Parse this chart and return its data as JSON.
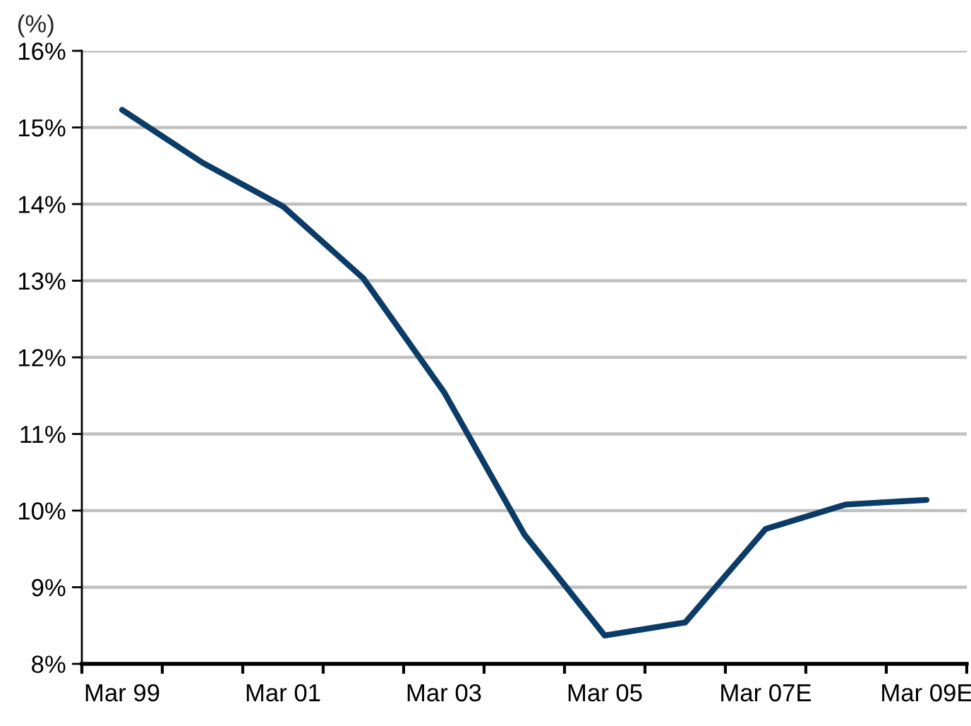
{
  "chart_data": {
    "type": "line",
    "ylabel": "(%)",
    "categories": [
      "Mar 99",
      null,
      "Mar 01",
      null,
      "Mar 03",
      null,
      "Mar 05",
      null,
      "Mar 07E",
      null,
      "Mar 09E"
    ],
    "series": [
      {
        "color": "#0b3c68",
        "values": [
          15.23,
          14.54,
          13.97,
          13.03,
          11.55,
          9.69,
          8.37,
          8.54,
          9.76,
          10.08,
          10.14
        ]
      }
    ],
    "ylim": [
      8,
      16
    ],
    "yticks": [
      {
        "value": 8,
        "label": "8%"
      },
      {
        "value": 9,
        "label": "9%"
      },
      {
        "value": 10,
        "label": "10%"
      },
      {
        "value": 11,
        "label": "11%"
      },
      {
        "value": 12,
        "label": "12%"
      },
      {
        "value": 13,
        "label": "13%"
      },
      {
        "value": 14,
        "label": "14%"
      },
      {
        "value": 15,
        "label": "15%"
      },
      {
        "value": 16,
        "label": "16%"
      }
    ],
    "grid": "y",
    "line_style": "solid"
  }
}
